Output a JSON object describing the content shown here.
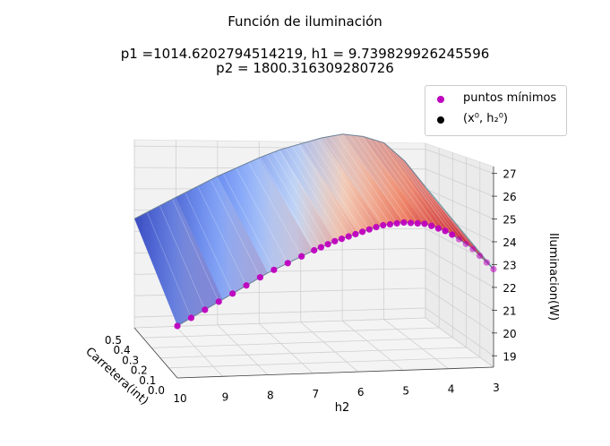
{
  "chart_data": {
    "type": "surface3d",
    "title_lines": [
      "Función de iluminación",
      "p1 =1014.6202794514219, h1 = 9.739829926245596",
      "p2 = 1800.316309280726"
    ],
    "xlabel": "h2",
    "ylabel": "Carretera(int)",
    "zlabel": "Iluminacion(W)",
    "x_ticks": [
      "10",
      "9",
      "8",
      "7",
      "6",
      "5",
      "4",
      "3"
    ],
    "y_ticks": [
      "0.0",
      "0.1",
      "0.2",
      "0.3",
      "0.4",
      "0.5"
    ],
    "z_ticks": [
      "19",
      "20",
      "21",
      "22",
      "23",
      "24",
      "25",
      "26",
      "27"
    ],
    "xlim": [
      3,
      10
    ],
    "ylim": [
      0,
      0.5
    ],
    "zlim": [
      18.5,
      27.3
    ],
    "colormap": "coolwarm",
    "surface_profile": {
      "h2": [
        10,
        9,
        8,
        7,
        6.5,
        6,
        5.5,
        5,
        4.5,
        4,
        3.5,
        3
      ],
      "front_min_edge": [
        20.8,
        21.9,
        23.0,
        23.9,
        24.3,
        24.6,
        24.9,
        25.0,
        24.9,
        24.5,
        23.8,
        22.8
      ],
      "back_edge": [
        23.6,
        24.6,
        25.6,
        26.5,
        26.9,
        27.2,
        27.5,
        27.7,
        27.6,
        27.3,
        26.4,
        25.1
      ]
    },
    "series": [
      {
        "name": "puntos mínimos",
        "color": "#bf00bf"
      },
      {
        "name": "(x⁰, h₂⁰)",
        "color": "#000000"
      }
    ]
  },
  "legend": {
    "item1": "puntos mínimos",
    "item2": "(x⁰, h₂⁰)",
    "item1_color": "#bf00bf",
    "item2_color": "#000000"
  }
}
